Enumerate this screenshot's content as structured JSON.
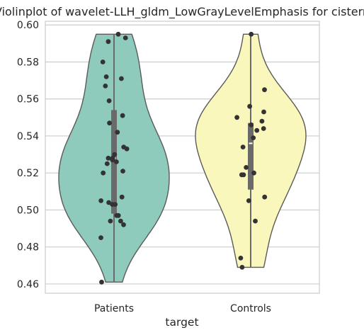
{
  "chart_data": {
    "type": "violin",
    "title": "Violinplot of wavelet-LLH_gldm_LowGrayLevelEmphasis for cistern",
    "xlabel": "target",
    "ylabel": "",
    "ylim": [
      0.455,
      0.602
    ],
    "yticks": [
      "0.46",
      "0.48",
      "0.50",
      "0.52",
      "0.54",
      "0.56",
      "0.58",
      "0.60"
    ],
    "grid": true,
    "categories": [
      "Patients",
      "Controls"
    ],
    "colors": {
      "Patients": "#8ecbbd",
      "Controls": "#f9f7bb",
      "outline": "#5a5a5a",
      "points": "#333333",
      "box": "#6a6a6a"
    },
    "series": [
      {
        "name": "Patients",
        "box": {
          "q1": 0.498,
          "median": 0.528,
          "q3": 0.554,
          "min": 0.461,
          "max": 0.595
        },
        "points": [
          0.595,
          0.593,
          0.591,
          0.58,
          0.572,
          0.571,
          0.567,
          0.559,
          0.551,
          0.547,
          0.542,
          0.534,
          0.533,
          0.53,
          0.528,
          0.528,
          0.527,
          0.526,
          0.525,
          0.521,
          0.52,
          0.507,
          0.505,
          0.504,
          0.503,
          0.503,
          0.497,
          0.497,
          0.494,
          0.494,
          0.492,
          0.485,
          0.461
        ]
      },
      {
        "name": "Controls",
        "box": {
          "q1": 0.511,
          "median": 0.536,
          "q3": 0.547,
          "min": 0.469,
          "max": 0.595
        },
        "points": [
          0.595,
          0.565,
          0.556,
          0.553,
          0.55,
          0.548,
          0.546,
          0.544,
          0.543,
          0.539,
          0.534,
          0.523,
          0.52,
          0.519,
          0.519,
          0.507,
          0.505,
          0.494,
          0.474,
          0.469
        ]
      }
    ]
  }
}
